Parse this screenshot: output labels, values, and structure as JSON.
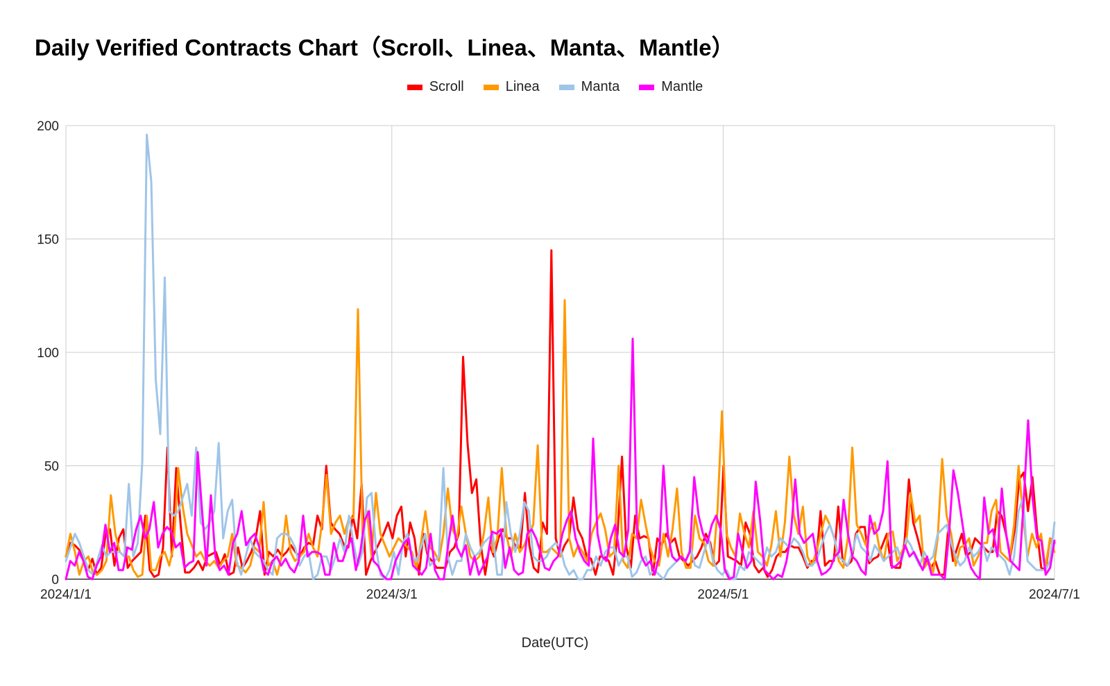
{
  "chart_data": {
    "type": "line",
    "title": "Daily Verified Contracts Chart（Scroll、Linea、Manta、Mantle）",
    "xlabel": "Date(UTC)",
    "ylabel": "",
    "x_range": [
      "2024/1/1",
      "2024/7/1"
    ],
    "ylim": [
      0,
      200
    ],
    "y_ticks": [
      0,
      50,
      100,
      150,
      200
    ],
    "x_ticks": [
      "2024/1/1",
      "2024/3/1",
      "2024/5/1",
      "2024/7/1"
    ],
    "grid": true,
    "legend_position": "top",
    "series": [
      {
        "name": "Scroll",
        "color": "#ff0000",
        "values": [
          10,
          16,
          15,
          13,
          8,
          4,
          9,
          2,
          5,
          20,
          22,
          6,
          18,
          22,
          5,
          8,
          10,
          12,
          28,
          4,
          1,
          2,
          14,
          58,
          10,
          49,
          24,
          3,
          3,
          5,
          8,
          4,
          10,
          11,
          12,
          6,
          11,
          2,
          3,
          14,
          5,
          8,
          12,
          18,
          30,
          2,
          12,
          10,
          13,
          10,
          12,
          15,
          12,
          10,
          14,
          16,
          15,
          28,
          22,
          50,
          25,
          22,
          20,
          15,
          14,
          28,
          18,
          42,
          2,
          8,
          12,
          16,
          20,
          25,
          18,
          28,
          32,
          10,
          25,
          18,
          2,
          20,
          10,
          8,
          5,
          5,
          5,
          12,
          14,
          20,
          98,
          60,
          38,
          44,
          15,
          2,
          15,
          10,
          18,
          22,
          18,
          18,
          14,
          14,
          38,
          15,
          5,
          3,
          25,
          20,
          145,
          18,
          10,
          15,
          18,
          36,
          22,
          18,
          10,
          9,
          2,
          10,
          10,
          8,
          2,
          20,
          54,
          14,
          5,
          28,
          18,
          19,
          18,
          2,
          18,
          15,
          20,
          16,
          18,
          10,
          8,
          6,
          8,
          10,
          14,
          20,
          16,
          6,
          8,
          50,
          10,
          9,
          8,
          6,
          25,
          20,
          6,
          3,
          5,
          1,
          4,
          10,
          12,
          12,
          15,
          14,
          14,
          10,
          5,
          8,
          8,
          30,
          6,
          8,
          8,
          32,
          8,
          6,
          8,
          20,
          23,
          23,
          7,
          9,
          10,
          15,
          20,
          6,
          5,
          5,
          16,
          44,
          25,
          18,
          10,
          8,
          5,
          8,
          2,
          2,
          24,
          8,
          14,
          20,
          10,
          12,
          18,
          16,
          14,
          12,
          12,
          30,
          28,
          20,
          10,
          22,
          44,
          47,
          30,
          45,
          22,
          5,
          4,
          18,
          16
        ]
      },
      {
        "name": "Linea",
        "color": "#ff9900",
        "values": [
          10,
          20,
          12,
          2,
          8,
          10,
          3,
          2,
          4,
          8,
          37,
          20,
          12,
          10,
          10,
          4,
          1,
          2,
          28,
          4,
          4,
          10,
          12,
          6,
          15,
          49,
          32,
          20,
          15,
          10,
          12,
          8,
          6,
          8,
          5,
          8,
          10,
          20,
          6,
          5,
          3,
          6,
          14,
          12,
          34,
          6,
          8,
          2,
          10,
          28,
          12,
          8,
          10,
          12,
          20,
          14,
          10,
          25,
          46,
          20,
          25,
          28,
          20,
          27,
          27,
          119,
          20,
          30,
          10,
          38,
          20,
          15,
          10,
          14,
          18,
          16,
          14,
          12,
          5,
          16,
          30,
          14,
          12,
          8,
          20,
          40,
          22,
          18,
          32,
          20,
          10,
          8,
          10,
          20,
          36,
          12,
          18,
          49,
          20,
          10,
          20,
          12,
          15,
          20,
          24,
          59,
          12,
          12,
          14,
          12,
          10,
          123,
          18,
          10,
          15,
          12,
          8,
          20,
          25,
          29,
          22,
          10,
          12,
          50,
          8,
          5,
          20,
          18,
          35,
          24,
          14,
          8,
          6,
          20,
          10,
          22,
          40,
          12,
          5,
          5,
          28,
          18,
          16,
          8,
          6,
          30,
          74,
          20,
          14,
          10,
          29,
          20,
          14,
          30,
          12,
          10,
          6,
          15,
          30,
          10,
          25,
          54,
          28,
          20,
          32,
          10,
          6,
          12,
          20,
          28,
          24,
          18,
          8,
          5,
          18,
          58,
          24,
          20,
          15,
          22,
          25,
          14,
          8,
          20,
          21,
          8,
          12,
          16,
          38,
          25,
          28,
          5,
          8,
          3,
          18,
          53,
          28,
          20,
          6,
          14,
          15,
          18,
          6,
          10,
          16,
          16,
          30,
          35,
          12,
          10,
          8,
          24,
          50,
          28,
          10,
          20,
          14,
          20,
          5,
          18,
          12
        ]
      },
      {
        "name": "Manta",
        "color": "#9fc5e8",
        "values": [
          8,
          14,
          20,
          16,
          10,
          4,
          2,
          8,
          15,
          10,
          12,
          12,
          12,
          10,
          42,
          10,
          16,
          52,
          196,
          175,
          88,
          64,
          133,
          30,
          28,
          30,
          36,
          42,
          28,
          58,
          25,
          22,
          25,
          30,
          60,
          18,
          30,
          35,
          8,
          2,
          10,
          18,
          12,
          10,
          8,
          4,
          2,
          18,
          20,
          20,
          18,
          14,
          6,
          10,
          12,
          0,
          2,
          10,
          10,
          4,
          10,
          18,
          12,
          28,
          16,
          6,
          12,
          36,
          38,
          14,
          2,
          0,
          4,
          12,
          2,
          16,
          20,
          10,
          8,
          14,
          20,
          6,
          8,
          10,
          49,
          10,
          2,
          8,
          8,
          20,
          14,
          10,
          12,
          16,
          18,
          20,
          2,
          2,
          34,
          20,
          12,
          20,
          34,
          30,
          10,
          8,
          8,
          10,
          14,
          16,
          14,
          6,
          2,
          4,
          0,
          0,
          4,
          4,
          10,
          6,
          12,
          14,
          14,
          6,
          10,
          10,
          1,
          3,
          8,
          10,
          2,
          4,
          2,
          0,
          4,
          6,
          8,
          10,
          8,
          14,
          6,
          5,
          12,
          18,
          8,
          4,
          2,
          4,
          0,
          0,
          6,
          4,
          12,
          10,
          8,
          6,
          14,
          10,
          12,
          18,
          16,
          14,
          18,
          16,
          12,
          6,
          6,
          8,
          14,
          20,
          24,
          18,
          10,
          8,
          6,
          12,
          20,
          14,
          12,
          8,
          15,
          12,
          8,
          10,
          12,
          14,
          8,
          18,
          15,
          10,
          6,
          12,
          8,
          10,
          20,
          22,
          24,
          16,
          10,
          6,
          8,
          14,
          10,
          12,
          16,
          8,
          14,
          12,
          10,
          8,
          2,
          10,
          30,
          36,
          8,
          6,
          4,
          4,
          4,
          8,
          25
        ]
      },
      {
        "name": "Mantle",
        "color": "#ff00ff",
        "values": [
          0,
          8,
          6,
          12,
          8,
          1,
          0,
          6,
          10,
          24,
          12,
          16,
          4,
          4,
          14,
          13,
          22,
          28,
          18,
          22,
          34,
          14,
          20,
          23,
          21,
          14,
          16,
          5,
          7,
          8,
          56,
          30,
          6,
          37,
          10,
          4,
          6,
          2,
          16,
          20,
          30,
          15,
          18,
          20,
          14,
          4,
          2,
          8,
          10,
          6,
          9,
          5,
          3,
          8,
          28,
          10,
          12,
          12,
          11,
          2,
          2,
          16,
          8,
          8,
          14,
          18,
          4,
          12,
          26,
          30,
          8,
          6,
          2,
          0,
          0,
          8,
          12,
          16,
          18,
          6,
          4,
          2,
          5,
          20,
          4,
          0,
          0,
          15,
          28,
          14,
          10,
          15,
          2,
          10,
          2,
          6,
          10,
          21,
          20,
          22,
          5,
          14,
          4,
          2,
          3,
          20,
          22,
          18,
          12,
          5,
          4,
          8,
          10,
          20,
          26,
          30,
          18,
          12,
          8,
          6,
          62,
          20,
          10,
          8,
          18,
          24,
          12,
          10,
          22,
          106,
          20,
          10,
          6,
          8,
          2,
          10,
          50,
          20,
          10,
          8,
          10,
          8,
          12,
          45,
          28,
          20,
          16,
          24,
          28,
          22,
          4,
          0,
          1,
          20,
          12,
          5,
          8,
          43,
          26,
          4,
          2,
          0,
          2,
          1,
          8,
          20,
          44,
          20,
          16,
          18,
          20,
          8,
          2,
          3,
          5,
          10,
          12,
          35,
          20,
          10,
          8,
          4,
          2,
          28,
          20,
          22,
          30,
          52,
          5,
          6,
          8,
          15,
          10,
          12,
          8,
          4,
          10,
          2,
          2,
          2,
          0,
          20,
          48,
          38,
          25,
          12,
          5,
          2,
          0,
          36,
          20,
          22,
          10,
          40,
          20,
          8,
          6,
          4,
          35,
          70,
          36,
          18,
          17,
          2,
          5,
          17
        ]
      }
    ]
  }
}
